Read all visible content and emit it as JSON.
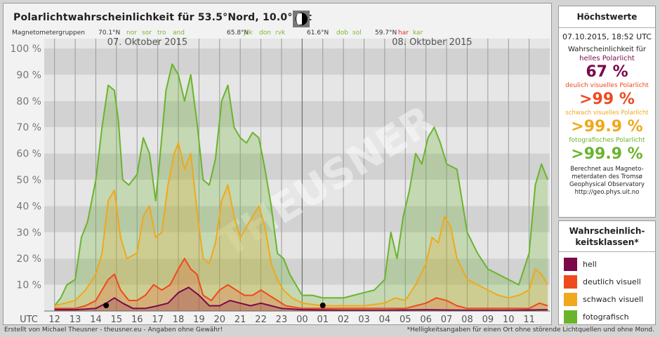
{
  "title": "Polarlichtwahrscheinlichkeit für 53.5°Nord, 10.0°Ost",
  "moon_icon": "waxing-crescent-moon-icon",
  "mag_groups": [
    {
      "label": "Magnetometergruppen",
      "color": "#333333"
    },
    {
      "label": "70.1°N",
      "color": "#333333"
    },
    {
      "label": "nor",
      "color": "#7cb82f"
    },
    {
      "label": "sor",
      "color": "#7cb82f"
    },
    {
      "label": "tro",
      "color": "#7cb82f"
    },
    {
      "label": "and",
      "color": "#7cb82f"
    },
    {
      "label": "65.8°N",
      "color": "#333333"
    },
    {
      "label": "jck",
      "color": "#7cb82f"
    },
    {
      "label": "don",
      "color": "#7cb82f"
    },
    {
      "label": "rvk",
      "color": "#7cb82f"
    },
    {
      "label": "61.6°N",
      "color": "#333333"
    },
    {
      "label": "dob",
      "color": "#7cb82f"
    },
    {
      "label": "sol",
      "color": "#7cb82f"
    },
    {
      "label": "59.7°N",
      "color": "#333333"
    },
    {
      "label": "har",
      "color": "#e8331c"
    },
    {
      "label": "kar",
      "color": "#7cb82f"
    }
  ],
  "watermark": "THEUSNER",
  "chart_data": {
    "type": "line",
    "dates": [
      "07. Oktober 2015",
      "08. Oktober 2015"
    ],
    "x_labels": [
      "UTC",
      "12",
      "13",
      "14",
      "15",
      "16",
      "17",
      "18",
      "19",
      "20",
      "21",
      "22",
      "23",
      "00",
      "01",
      "02",
      "03",
      "04",
      "05",
      "06",
      "07",
      "08",
      "09",
      "10",
      "11"
    ],
    "y_ticks": [
      "10 %",
      "20 %",
      "30 %",
      "40 %",
      "50 %",
      "60 %",
      "70 %",
      "80 %",
      "90 %",
      "100 %"
    ],
    "ylim": [
      0,
      100
    ],
    "xlim_hours": [
      11.5,
      36
    ],
    "series": [
      {
        "name": "fotografisch",
        "color": "#6ab42d",
        "x": [
          12,
          12.3,
          12.6,
          13,
          13.3,
          13.6,
          14,
          14.3,
          14.6,
          14.9,
          15.1,
          15.3,
          15.6,
          16,
          16.3,
          16.6,
          16.9,
          17.1,
          17.4,
          17.7,
          18,
          18.3,
          18.6,
          18.9,
          19.2,
          19.5,
          19.8,
          20.1,
          20.4,
          20.7,
          21,
          21.3,
          21.6,
          21.9,
          22.2,
          22.5,
          22.8,
          23.1,
          23.4,
          23.7,
          24,
          24.5,
          25,
          25.5,
          26,
          26.5,
          27,
          27.5,
          28,
          28.3,
          28.6,
          28.9,
          29.2,
          29.5,
          29.8,
          30.1,
          30.4,
          30.7,
          31,
          31.5,
          32,
          32.5,
          33,
          33.5,
          34,
          34.5,
          35,
          35.3,
          35.6,
          35.9
        ],
        "values": [
          2,
          5,
          10,
          12,
          28,
          34,
          50,
          70,
          86,
          84,
          72,
          50,
          48,
          52,
          66,
          60,
          42,
          58,
          84,
          94,
          90,
          80,
          90,
          72,
          50,
          48,
          58,
          80,
          86,
          70,
          66,
          64,
          68,
          66,
          54,
          40,
          22,
          20,
          14,
          10,
          6,
          6,
          5,
          5,
          5,
          6,
          7,
          8,
          12,
          30,
          20,
          36,
          46,
          60,
          56,
          66,
          70,
          64,
          56,
          54,
          30,
          22,
          16,
          14,
          12,
          10,
          22,
          48,
          56,
          50
        ]
      },
      {
        "name": "schwach visuell",
        "color": "#f0a81c",
        "x": [
          12,
          12.5,
          13,
          13.5,
          14,
          14.3,
          14.6,
          14.9,
          15.2,
          15.5,
          16,
          16.3,
          16.6,
          16.9,
          17.2,
          17.5,
          17.8,
          18,
          18.3,
          18.6,
          18.9,
          19.2,
          19.5,
          19.8,
          20.1,
          20.4,
          20.7,
          21,
          21.3,
          21.6,
          21.9,
          22.2,
          22.5,
          22.8,
          23.1,
          23.5,
          24,
          25,
          26,
          27,
          28,
          28.5,
          29,
          29.5,
          30,
          30.3,
          30.6,
          30.9,
          31.2,
          31.5,
          32,
          32.5,
          33,
          33.5,
          34,
          34.5,
          35,
          35.3,
          35.6,
          35.9
        ],
        "values": [
          2,
          3,
          4,
          8,
          14,
          22,
          42,
          46,
          28,
          20,
          22,
          36,
          40,
          28,
          30,
          48,
          60,
          64,
          54,
          60,
          38,
          20,
          18,
          26,
          42,
          48,
          36,
          28,
          32,
          36,
          40,
          32,
          18,
          12,
          8,
          5,
          3,
          2,
          2,
          2,
          3,
          5,
          4,
          10,
          18,
          28,
          26,
          36,
          32,
          20,
          12,
          10,
          8,
          6,
          5,
          6,
          8,
          16,
          14,
          10
        ]
      },
      {
        "name": "deutlich visuell",
        "color": "#ee4a1e",
        "x": [
          12,
          13,
          13.5,
          14,
          14.3,
          14.6,
          14.9,
          15.2,
          15.6,
          16,
          16.4,
          16.8,
          17.2,
          17.6,
          18,
          18.3,
          18.6,
          18.9,
          19.2,
          19.6,
          20,
          20.4,
          20.8,
          21.2,
          21.6,
          22,
          22.4,
          22.8,
          23.2,
          24,
          26,
          28,
          29,
          29.5,
          30,
          30.5,
          31,
          31.5,
          32,
          33,
          34,
          35,
          35.5,
          35.9
        ],
        "values": [
          1,
          1,
          2,
          4,
          8,
          12,
          14,
          8,
          4,
          4,
          6,
          10,
          8,
          10,
          16,
          20,
          16,
          14,
          6,
          4,
          8,
          10,
          8,
          6,
          6,
          8,
          6,
          4,
          2,
          1,
          1,
          1,
          1,
          2,
          3,
          5,
          4,
          2,
          1,
          1,
          1,
          1,
          3,
          2
        ]
      },
      {
        "name": "hell",
        "color": "#7a0a4a",
        "x": [
          12,
          13,
          14,
          14.5,
          14.9,
          15.3,
          15.8,
          16.4,
          17,
          17.5,
          18,
          18.5,
          19,
          19.5,
          20,
          20.5,
          21,
          21.5,
          22,
          23,
          24,
          26,
          28,
          30,
          32,
          34,
          35.9
        ],
        "values": [
          0.5,
          0.5,
          1,
          3,
          5,
          3,
          1,
          1,
          2,
          3,
          7,
          9,
          6,
          2,
          2,
          4,
          3,
          2,
          3,
          1,
          0.5,
          0.3,
          0.3,
          0.5,
          0.3,
          0.3,
          0.5
        ]
      }
    ]
  },
  "max_box": {
    "title": "Höchstwerte",
    "datetime": "07.10.2015, 18:52 UTC",
    "intro": "Wahrscheinlichkeit für",
    "hell_label": "helles Polarlicht",
    "hell_value": "67 %",
    "deutlich_label": "deulich visuelles Polarlicht",
    "deutlich_value": ">99 %",
    "schwach_label": "schwach visuelles Polarlicht",
    "schwach_value": ">99.9 %",
    "foto_label": "fotografisches Polarlicht",
    "foto_value": ">99.9 %",
    "note_1": "Berechnet aus Magneto-",
    "note_2": "meterdaten des Tromsø",
    "note_3": "Geophysical Observatory",
    "note_4": "http://geo.phys.uit.no",
    "colors": {
      "hell": "#7a0a4a",
      "deutlich": "#ee4a1e",
      "schwach": "#f0a81c",
      "foto": "#6ab42d"
    }
  },
  "legend_box": {
    "title_1": "Wahrscheinlich-",
    "title_2": "keitsklassen*",
    "items": [
      {
        "label": "hell",
        "color": "#7a0a4a"
      },
      {
        "label": "deutlich visuell",
        "color": "#ee4a1e"
      },
      {
        "label": "schwach visuell",
        "color": "#f0a81c"
      },
      {
        "label": "fotografisch",
        "color": "#6ab42d"
      }
    ]
  },
  "footer_left": "Erstellt von Michael Theusner - theusner.eu - Angaben ohne Gewähr!",
  "footer_right": "*Helligkeitsangaben für einen Ort ohne störende Lichtquellen und ohne Mond."
}
